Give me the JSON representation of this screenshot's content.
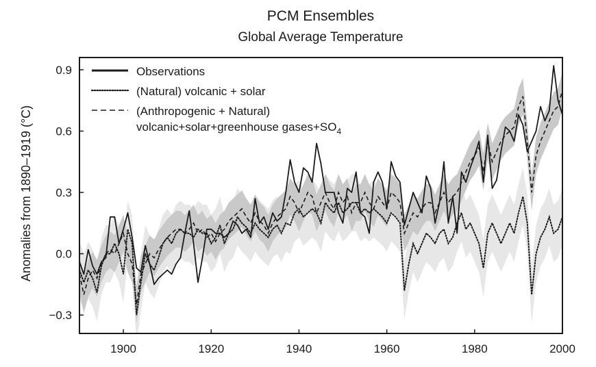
{
  "chart_data": {
    "type": "line",
    "title": "PCM Ensembles",
    "subtitle": "Global Average Temperature",
    "xlabel": "",
    "ylabel": "Anomalies from 1890–1919 (°C)",
    "xlim": [
      1890,
      2000
    ],
    "ylim": [
      -0.39,
      0.96
    ],
    "xticks": [
      1900,
      1920,
      1940,
      1960,
      1980,
      2000
    ],
    "yticks": [
      -0.3,
      0.0,
      0.3,
      0.6,
      0.9
    ],
    "xtick_labels": [
      "1900",
      "1920",
      "1940",
      "1960",
      "1980",
      "2000"
    ],
    "ytick_labels": [
      "−0.3",
      "0.0",
      "0.3",
      "0.6",
      "0.9"
    ],
    "legend_position": "top-left",
    "legend": [
      "Observations",
      "(Natural) volcanic + solar",
      "(Anthropogenic + Natural)"
    ],
    "legend_line2_text": "volcanic+solar+greenhouse gases+SO",
    "legend_line2_subscript": "4",
    "x": [
      1890,
      1891,
      1892,
      1893,
      1894,
      1895,
      1896,
      1897,
      1898,
      1899,
      1900,
      1901,
      1902,
      1903,
      1904,
      1905,
      1906,
      1907,
      1908,
      1909,
      1910,
      1911,
      1912,
      1913,
      1914,
      1915,
      1916,
      1917,
      1918,
      1919,
      1920,
      1921,
      1922,
      1923,
      1924,
      1925,
      1926,
      1927,
      1928,
      1929,
      1930,
      1931,
      1932,
      1933,
      1934,
      1935,
      1936,
      1937,
      1938,
      1939,
      1940,
      1941,
      1942,
      1943,
      1944,
      1945,
      1946,
      1947,
      1948,
      1949,
      1950,
      1951,
      1952,
      1953,
      1954,
      1955,
      1956,
      1957,
      1958,
      1959,
      1960,
      1961,
      1962,
      1963,
      1964,
      1965,
      1966,
      1967,
      1968,
      1969,
      1970,
      1971,
      1972,
      1973,
      1974,
      1975,
      1976,
      1977,
      1978,
      1979,
      1980,
      1981,
      1982,
      1983,
      1984,
      1985,
      1986,
      1987,
      1988,
      1989,
      1990,
      1991,
      1992,
      1993,
      1994,
      1995,
      1996,
      1997,
      1998,
      1999,
      2000
    ],
    "series": [
      {
        "name": "Observations",
        "style": "solid",
        "color": "#1a1a1a",
        "values": [
          -0.04,
          -0.1,
          0.02,
          -0.06,
          -0.1,
          -0.04,
          -0.02,
          0.18,
          0.18,
          0.05,
          0.12,
          0.2,
          0.08,
          -0.07,
          -0.09,
          0.04,
          -0.05,
          -0.15,
          -0.12,
          -0.1,
          -0.08,
          -0.1,
          -0.05,
          -0.02,
          0.1,
          0.21,
          0.05,
          -0.14,
          -0.02,
          0.12,
          0.12,
          0.1,
          0.1,
          0.08,
          0.1,
          0.16,
          0.14,
          0.1,
          0.12,
          0.08,
          0.27,
          0.15,
          0.18,
          0.12,
          0.2,
          0.16,
          0.18,
          0.3,
          0.46,
          0.35,
          0.3,
          0.42,
          0.4,
          0.35,
          0.54,
          0.44,
          0.3,
          0.3,
          0.3,
          0.2,
          0.15,
          0.32,
          0.3,
          0.4,
          0.2,
          0.18,
          0.1,
          0.35,
          0.4,
          0.35,
          0.22,
          0.45,
          0.38,
          0.35,
          0.14,
          0.22,
          0.3,
          0.25,
          0.2,
          0.38,
          0.32,
          0.15,
          0.25,
          0.45,
          0.15,
          0.28,
          0.1,
          0.4,
          0.35,
          0.42,
          0.48,
          0.55,
          0.35,
          0.58,
          0.32,
          0.36,
          0.5,
          0.62,
          0.6,
          0.55,
          0.68,
          0.63,
          0.5,
          0.55,
          0.6,
          0.72,
          0.65,
          0.7,
          0.92,
          0.75,
          0.68
        ]
      },
      {
        "name": "(Natural) volcanic + solar",
        "style": "dotted",
        "color": "#1a1a1a",
        "values": [
          -0.08,
          -0.14,
          -0.08,
          -0.12,
          -0.19,
          -0.06,
          0.0,
          0.0,
          0.05,
          0.0,
          -0.1,
          0.12,
          0.05,
          -0.3,
          -0.14,
          0.0,
          -0.05,
          -0.08,
          -0.02,
          0.05,
          0.08,
          0.05,
          0.1,
          0.12,
          0.1,
          0.1,
          0.08,
          0.12,
          0.1,
          0.1,
          0.05,
          0.08,
          0.14,
          0.05,
          0.1,
          0.12,
          0.18,
          0.15,
          0.13,
          0.1,
          0.15,
          0.12,
          0.1,
          0.08,
          0.12,
          0.14,
          0.1,
          0.15,
          0.14,
          0.2,
          0.22,
          0.18,
          0.2,
          0.22,
          0.2,
          0.15,
          0.25,
          0.22,
          0.2,
          0.25,
          0.2,
          0.22,
          0.25,
          0.25,
          0.2,
          0.22,
          0.2,
          0.22,
          0.2,
          0.18,
          0.15,
          0.2,
          0.18,
          0.15,
          -0.18,
          -0.05,
          0.05,
          0.0,
          0.05,
          0.1,
          0.08,
          0.05,
          0.1,
          0.12,
          0.05,
          0.08,
          0.15,
          0.2,
          0.12,
          0.15,
          0.1,
          0.05,
          -0.07,
          0.1,
          0.15,
          0.1,
          0.05,
          0.1,
          0.15,
          0.1,
          0.2,
          0.28,
          0.15,
          -0.2,
          0.0,
          0.08,
          0.12,
          0.18,
          0.1,
          0.12,
          0.18
        ]
      },
      {
        "name": "(Anthropogenic + Natural)",
        "style": "dashed",
        "color": "#1a1a1a",
        "values": [
          -0.1,
          -0.2,
          -0.12,
          -0.08,
          -0.12,
          -0.05,
          0.0,
          0.02,
          0.0,
          0.05,
          0.1,
          0.0,
          -0.05,
          -0.25,
          -0.1,
          -0.05,
          0.0,
          -0.02,
          0.02,
          0.05,
          0.08,
          0.1,
          0.12,
          0.12,
          0.1,
          0.12,
          0.15,
          0.1,
          0.12,
          0.08,
          0.1,
          0.06,
          0.1,
          0.12,
          0.16,
          0.18,
          0.2,
          0.22,
          0.18,
          0.15,
          0.2,
          0.16,
          0.14,
          0.1,
          0.15,
          0.18,
          0.2,
          0.22,
          0.28,
          0.25,
          0.2,
          0.25,
          0.3,
          0.28,
          0.2,
          0.25,
          0.3,
          0.25,
          0.22,
          0.3,
          0.25,
          0.28,
          0.2,
          0.25,
          0.25,
          0.3,
          0.25,
          0.22,
          0.28,
          0.25,
          0.22,
          0.3,
          0.28,
          0.25,
          0.1,
          0.15,
          0.2,
          0.18,
          0.22,
          0.25,
          0.25,
          0.2,
          0.25,
          0.3,
          0.25,
          0.28,
          0.3,
          0.35,
          0.4,
          0.45,
          0.48,
          0.52,
          0.4,
          0.55,
          0.45,
          0.5,
          0.55,
          0.58,
          0.6,
          0.62,
          0.72,
          0.77,
          0.55,
          0.3,
          0.48,
          0.55,
          0.6,
          0.65,
          0.7,
          0.72,
          0.8
        ]
      }
    ],
    "bands": [
      {
        "name": "natural-ensemble-range",
        "color": "#e7e7e7",
        "halfwidth": 0.14
      },
      {
        "name": "combined-ensemble-range",
        "color": "#c9c9c9",
        "halfwidth": 0.09
      }
    ]
  }
}
